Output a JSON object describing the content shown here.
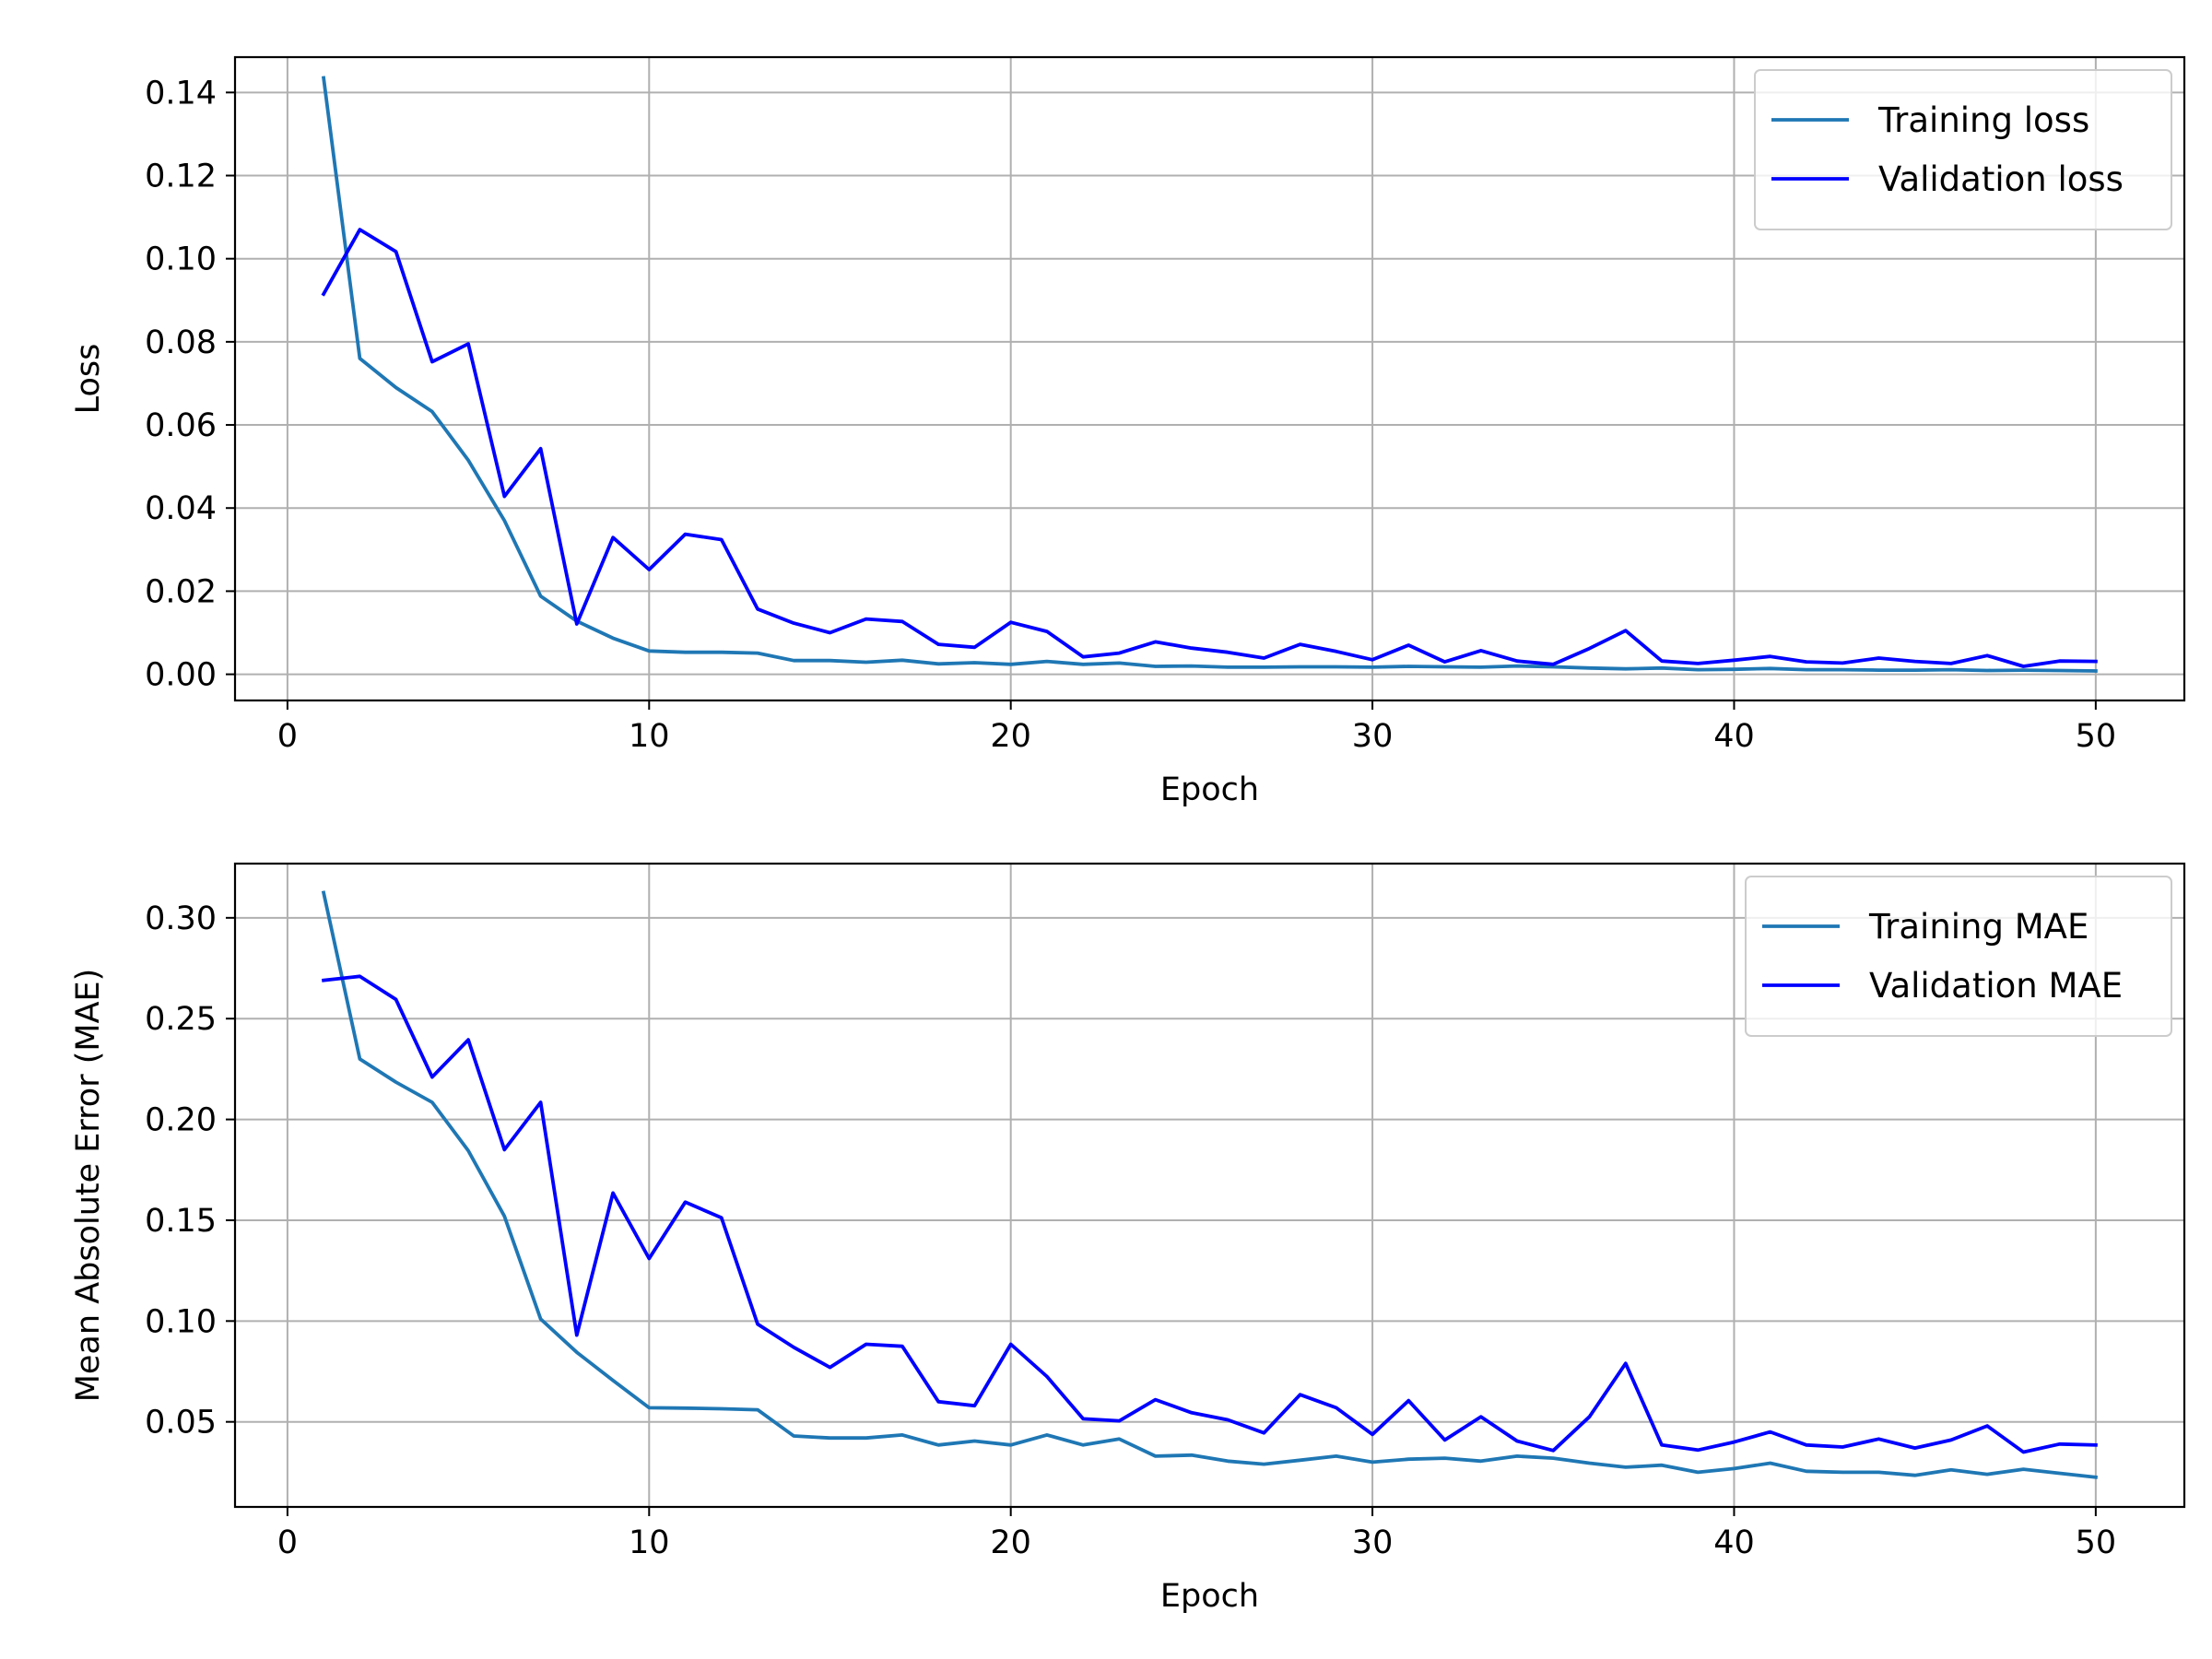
{
  "chart_data": [
    {
      "type": "line",
      "title": "",
      "xlabel": "Epoch",
      "ylabel": "Loss",
      "xlim": [
        -1.45,
        52.45
      ],
      "ylim": [
        -0.0063,
        0.1485
      ],
      "xticks": [
        0,
        10,
        20,
        30,
        40,
        50
      ],
      "xtick_labels": [
        "0",
        "10",
        "20",
        "30",
        "40",
        "50"
      ],
      "yticks": [
        0.0,
        0.02,
        0.04,
        0.06,
        0.08,
        0.1,
        0.12,
        0.14
      ],
      "ytick_labels": [
        "0.00",
        "0.02",
        "0.04",
        "0.06",
        "0.08",
        "0.10",
        "0.12",
        "0.14"
      ],
      "grid": true,
      "legend_position": "top-right",
      "x": [
        1,
        2,
        3,
        4,
        5,
        6,
        7,
        8,
        9,
        10,
        11,
        12,
        13,
        14,
        15,
        16,
        17,
        18,
        19,
        20,
        21,
        22,
        23,
        24,
        25,
        26,
        27,
        28,
        29,
        30,
        31,
        32,
        33,
        34,
        35,
        36,
        37,
        38,
        39,
        40,
        41,
        42,
        43,
        44,
        45,
        46,
        47,
        48,
        49,
        50
      ],
      "series": [
        {
          "name": "Training loss",
          "color": "#1f77b4",
          "values": [
            0.1435,
            0.076,
            0.069,
            0.0632,
            0.0515,
            0.037,
            0.0188,
            0.0128,
            0.0087,
            0.0056,
            0.0053,
            0.0053,
            0.0051,
            0.0033,
            0.0033,
            0.0029,
            0.0034,
            0.0025,
            0.0028,
            0.0024,
            0.0031,
            0.0024,
            0.0027,
            0.0019,
            0.002,
            0.0017,
            0.0017,
            0.0018,
            0.0018,
            0.0017,
            0.0019,
            0.0018,
            0.0017,
            0.002,
            0.0018,
            0.0015,
            0.0013,
            0.0015,
            0.0011,
            0.0012,
            0.0014,
            0.0011,
            0.0011,
            0.001,
            0.001,
            0.0011,
            0.0009,
            0.001,
            0.0009,
            0.0008
          ]
        },
        {
          "name": "Validation loss",
          "color": "#0000ff",
          "values": [
            0.0915,
            0.107,
            0.1017,
            0.0752,
            0.0795,
            0.0428,
            0.0543,
            0.0121,
            0.0329,
            0.0252,
            0.0337,
            0.0324,
            0.0157,
            0.0123,
            0.01,
            0.0133,
            0.0127,
            0.0072,
            0.0065,
            0.0125,
            0.0103,
            0.0042,
            0.0051,
            0.0078,
            0.0063,
            0.0053,
            0.0039,
            0.0072,
            0.0055,
            0.0035,
            0.007,
            0.003,
            0.0057,
            0.0032,
            0.0024,
            0.0062,
            0.0105,
            0.0032,
            0.0026,
            0.0034,
            0.0043,
            0.003,
            0.0027,
            0.0039,
            0.0031,
            0.0026,
            0.0045,
            0.0019,
            0.0032,
            0.0031
          ]
        }
      ]
    },
    {
      "type": "line",
      "title": "",
      "xlabel": "Epoch",
      "ylabel": "Mean Absolute Error (MAE)",
      "xlim": [
        -1.45,
        52.45
      ],
      "ylim": [
        0.0078,
        0.3269
      ],
      "xticks": [
        0,
        10,
        20,
        30,
        40,
        50
      ],
      "xtick_labels": [
        "0",
        "10",
        "20",
        "30",
        "40",
        "50"
      ],
      "yticks": [
        0.05,
        0.1,
        0.15,
        0.2,
        0.25,
        0.3
      ],
      "ytick_labels": [
        "0.05",
        "0.10",
        "0.15",
        "0.20",
        "0.25",
        "0.30"
      ],
      "grid": true,
      "legend_position": "top-right",
      "x": [
        1,
        2,
        3,
        4,
        5,
        6,
        7,
        8,
        9,
        10,
        11,
        12,
        13,
        14,
        15,
        16,
        17,
        18,
        19,
        20,
        21,
        22,
        23,
        24,
        25,
        26,
        27,
        28,
        29,
        30,
        31,
        32,
        33,
        34,
        35,
        36,
        37,
        38,
        39,
        40,
        41,
        42,
        43,
        44,
        45,
        46,
        47,
        48,
        49,
        50
      ],
      "series": [
        {
          "name": "Training MAE",
          "color": "#1f77b4",
          "values": [
            0.3125,
            0.23,
            0.2185,
            0.2085,
            0.1845,
            0.152,
            0.101,
            0.0845,
            0.0705,
            0.057,
            0.0568,
            0.0565,
            0.056,
            0.043,
            0.042,
            0.042,
            0.0435,
            0.0385,
            0.0405,
            0.0385,
            0.0435,
            0.0385,
            0.0415,
            0.033,
            0.0335,
            0.0305,
            0.029,
            0.031,
            0.033,
            0.03,
            0.0315,
            0.032,
            0.0305,
            0.033,
            0.032,
            0.0295,
            0.0275,
            0.0285,
            0.025,
            0.0268,
            0.0295,
            0.0255,
            0.025,
            0.025,
            0.0235,
            0.0262,
            0.024,
            0.0265,
            0.0245,
            0.0225
          ]
        },
        {
          "name": "Validation MAE",
          "color": "#0000ff",
          "values": [
            0.269,
            0.271,
            0.2595,
            0.221,
            0.2395,
            0.185,
            0.2085,
            0.093,
            0.1635,
            0.131,
            0.159,
            0.1512,
            0.0985,
            0.087,
            0.077,
            0.0885,
            0.0875,
            0.06,
            0.058,
            0.0885,
            0.0725,
            0.0515,
            0.0505,
            0.061,
            0.0545,
            0.051,
            0.0445,
            0.0635,
            0.057,
            0.0438,
            0.0605,
            0.041,
            0.0525,
            0.0405,
            0.0358,
            0.0525,
            0.079,
            0.0385,
            0.036,
            0.04,
            0.045,
            0.0385,
            0.0375,
            0.0415,
            0.037,
            0.041,
            0.048,
            0.035,
            0.039,
            0.0385
          ]
        }
      ]
    }
  ]
}
